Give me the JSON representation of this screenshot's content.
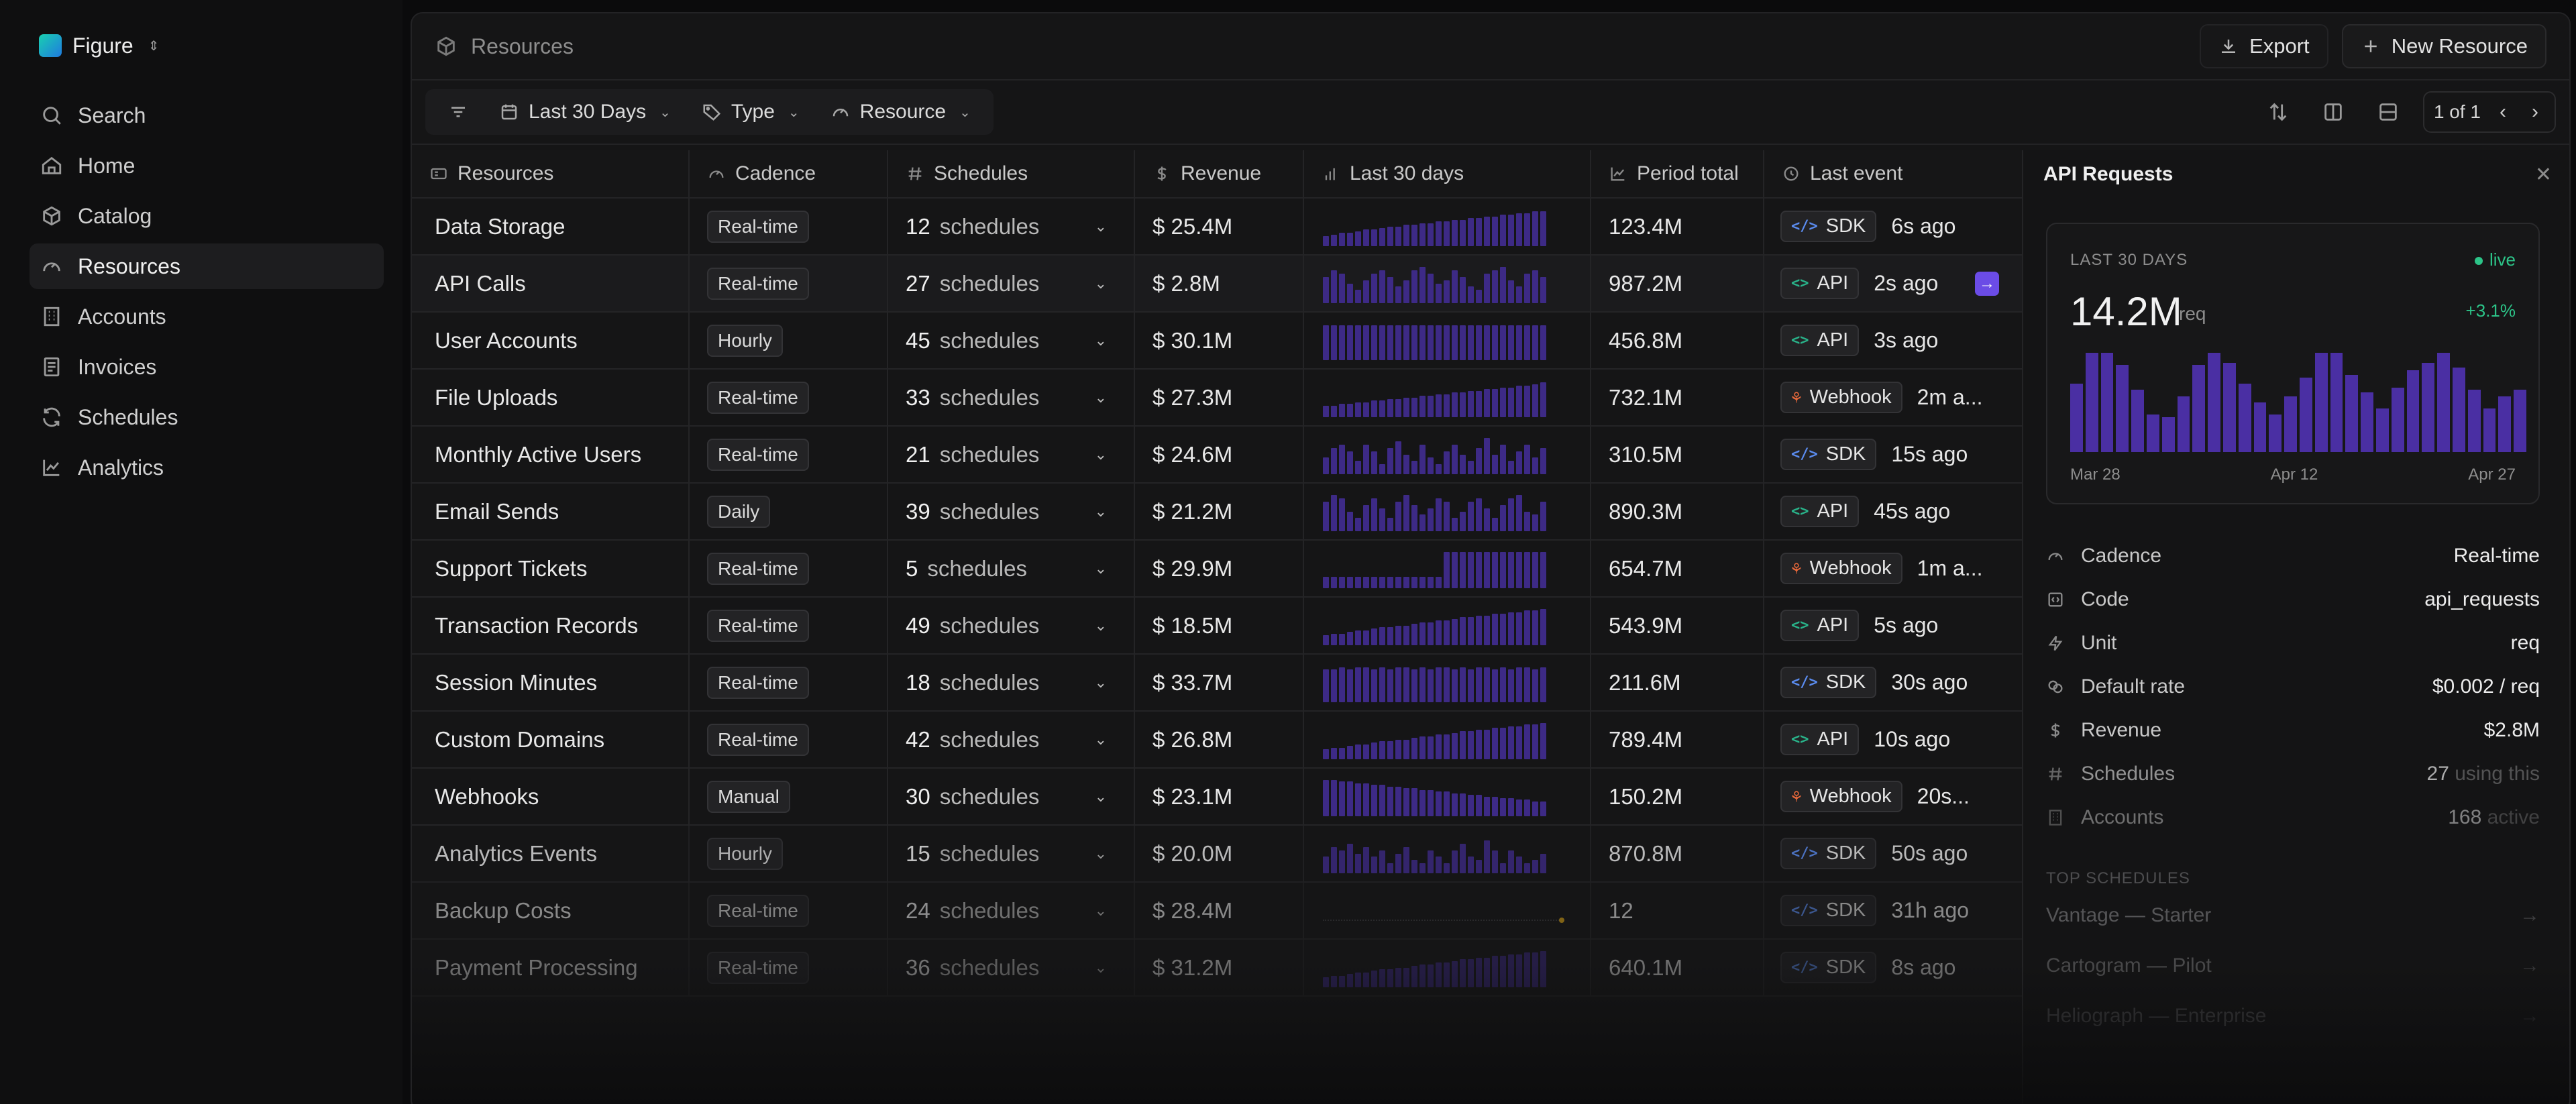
{
  "app": {
    "name": "Figure"
  },
  "sidebar": {
    "items": [
      {
        "label": "Search",
        "icon": "search-icon"
      },
      {
        "label": "Home",
        "icon": "home-icon"
      },
      {
        "label": "Catalog",
        "icon": "box-icon"
      },
      {
        "label": "Resources",
        "icon": "gauge-icon",
        "active": true
      },
      {
        "label": "Accounts",
        "icon": "building-icon"
      },
      {
        "label": "Invoices",
        "icon": "invoice-icon"
      },
      {
        "label": "Schedules",
        "icon": "refresh-icon"
      },
      {
        "label": "Analytics",
        "icon": "chart-icon"
      }
    ]
  },
  "header": {
    "breadcrumb": "Resources",
    "export_label": "Export",
    "new_label": "New Resource"
  },
  "filters": {
    "range_label": "Last 30 Days",
    "type_label": "Type",
    "resource_label": "Resource"
  },
  "pager": {
    "label": "1 of 1"
  },
  "table": {
    "columns": [
      "Resources",
      "Cadence",
      "Schedules",
      "Revenue",
      "Last 30 days",
      "Period total",
      "Last event"
    ],
    "schedules_word": "schedules",
    "rows": [
      {
        "name": "Data Storage",
        "cadence": "Real-time",
        "schedules": "12",
        "revenue": "$ 25.4M",
        "spark": [
          6,
          7,
          8,
          8,
          9,
          10,
          10,
          11,
          12,
          12,
          13,
          13,
          14,
          14,
          15,
          15,
          16,
          16,
          17,
          17,
          18,
          18,
          19,
          19,
          20,
          20,
          21,
          21
        ],
        "total": "123.4M",
        "source": "SDK",
        "event": "6s ago"
      },
      {
        "name": "API Calls",
        "cadence": "Real-time",
        "schedules": "27",
        "revenue": "$ 2.8M",
        "spark": [
          16,
          20,
          18,
          12,
          8,
          14,
          18,
          20,
          16,
          10,
          14,
          20,
          22,
          18,
          12,
          14,
          20,
          16,
          10,
          8,
          18,
          20,
          22,
          14,
          10,
          18,
          20,
          16
        ],
        "total": "987.2M",
        "source": "API",
        "event": "2s ago",
        "jump": true
      },
      {
        "name": "User Accounts",
        "cadence": "Hourly",
        "schedules": "45",
        "revenue": "$ 30.1M",
        "spark": [
          21,
          21,
          21,
          21,
          21,
          21,
          21,
          21,
          21,
          21,
          21,
          21,
          21,
          21,
          21,
          21,
          21,
          21,
          21,
          21,
          21,
          21,
          21,
          21,
          21,
          21,
          21,
          21
        ],
        "total": "456.8M",
        "source": "API",
        "event": "3s ago"
      },
      {
        "name": "File Uploads",
        "cadence": "Real-time",
        "schedules": "33",
        "revenue": "$ 27.3M",
        "spark": [
          7,
          7,
          8,
          8,
          9,
          9,
          10,
          10,
          11,
          11,
          12,
          12,
          13,
          13,
          14,
          14,
          15,
          15,
          16,
          16,
          17,
          17,
          18,
          18,
          19,
          19,
          20,
          21
        ],
        "total": "732.1M",
        "source": "Webhook",
        "event": "2m a..."
      },
      {
        "name": "Monthly Active Users",
        "cadence": "Real-time",
        "schedules": "21",
        "revenue": "$ 24.6M",
        "spark": [
          10,
          16,
          18,
          14,
          8,
          18,
          14,
          6,
          16,
          20,
          12,
          8,
          18,
          10,
          6,
          14,
          18,
          12,
          8,
          16,
          22,
          12,
          18,
          8,
          14,
          18,
          10,
          16
        ],
        "total": "310.5M",
        "source": "SDK",
        "event": "15s ago"
      },
      {
        "name": "Email Sends",
        "cadence": "Daily",
        "schedules": "39",
        "revenue": "$ 21.2M",
        "spark": [
          18,
          22,
          20,
          12,
          8,
          16,
          20,
          14,
          8,
          18,
          22,
          16,
          10,
          14,
          20,
          18,
          8,
          12,
          18,
          20,
          14,
          8,
          16,
          20,
          22,
          12,
          10,
          18
        ],
        "total": "890.3M",
        "source": "API",
        "event": "45s ago"
      },
      {
        "name": "Support Tickets",
        "cadence": "Real-time",
        "schedules": "5",
        "revenue": "$ 29.9M",
        "spark": [
          7,
          7,
          7,
          7,
          7,
          7,
          7,
          7,
          7,
          7,
          7,
          7,
          7,
          7,
          7,
          22,
          22,
          22,
          22,
          22,
          22,
          22,
          22,
          22,
          22,
          22,
          22,
          22
        ],
        "total": "654.7M",
        "source": "Webhook",
        "event": "1m a..."
      },
      {
        "name": "Transaction Records",
        "cadence": "Real-time",
        "schedules": "49",
        "revenue": "$ 18.5M",
        "spark": [
          6,
          7,
          7,
          8,
          9,
          9,
          10,
          11,
          11,
          12,
          12,
          13,
          14,
          14,
          15,
          15,
          16,
          17,
          17,
          18,
          18,
          19,
          19,
          20,
          20,
          21,
          21,
          22
        ],
        "total": "543.9M",
        "source": "API",
        "event": "5s ago"
      },
      {
        "name": "Session Minutes",
        "cadence": "Real-time",
        "schedules": "18",
        "revenue": "$ 33.7M",
        "spark": [
          20,
          20,
          21,
          20,
          21,
          21,
          20,
          21,
          20,
          21,
          21,
          20,
          21,
          20,
          21,
          21,
          20,
          21,
          20,
          21,
          21,
          20,
          21,
          20,
          21,
          21,
          20,
          21
        ],
        "total": "211.6M",
        "source": "SDK",
        "event": "30s ago"
      },
      {
        "name": "Custom Domains",
        "cadence": "Real-time",
        "schedules": "42",
        "revenue": "$ 26.8M",
        "spark": [
          6,
          7,
          7,
          8,
          9,
          9,
          10,
          11,
          11,
          12,
          12,
          13,
          14,
          14,
          15,
          15,
          16,
          17,
          17,
          18,
          18,
          19,
          19,
          20,
          20,
          21,
          21,
          22
        ],
        "total": "789.4M",
        "source": "API",
        "event": "10s ago"
      },
      {
        "name": "Webhooks",
        "cadence": "Manual",
        "schedules": "30",
        "revenue": "$ 23.1M",
        "spark": [
          22,
          22,
          21,
          21,
          20,
          20,
          19,
          19,
          18,
          18,
          17,
          17,
          16,
          16,
          15,
          15,
          14,
          14,
          13,
          13,
          12,
          12,
          11,
          11,
          10,
          10,
          9,
          9
        ],
        "total": "150.2M",
        "source": "Webhook",
        "event": "20s..."
      },
      {
        "name": "Analytics Events",
        "cadence": "Hourly",
        "schedules": "15",
        "revenue": "$ 20.0M",
        "spark": [
          10,
          16,
          14,
          18,
          12,
          16,
          10,
          14,
          6,
          12,
          16,
          8,
          6,
          14,
          10,
          6,
          14,
          18,
          10,
          8,
          20,
          14,
          6,
          14,
          10,
          6,
          8,
          12
        ],
        "total": "870.8M",
        "source": "SDK",
        "event": "50s ago"
      },
      {
        "name": "Backup Costs",
        "cadence": "Real-time",
        "schedules": "24",
        "revenue": "$ 28.4M",
        "spark": [],
        "total": "12",
        "source": "SDK",
        "event": "31h ago"
      },
      {
        "name": "Payment Processing",
        "cadence": "Real-time",
        "schedules": "36",
        "revenue": "$ 31.2M",
        "spark": [
          6,
          7,
          7,
          8,
          9,
          9,
          10,
          11,
          11,
          12,
          12,
          13,
          14,
          14,
          15,
          15,
          16,
          17,
          17,
          18,
          18,
          19,
          19,
          20,
          20,
          21,
          21,
          22
        ],
        "total": "640.1M",
        "source": "SDK",
        "event": "8s ago"
      }
    ]
  },
  "detail": {
    "title": "API Requests",
    "card": {
      "label": "LAST 30 DAYS",
      "live": "live",
      "value": "14.2M",
      "unit": "req",
      "delta": "+3.1%",
      "bars": [
        55,
        80,
        80,
        70,
        50,
        30,
        28,
        45,
        70,
        80,
        72,
        55,
        40,
        30,
        45,
        60,
        80,
        80,
        62,
        48,
        35,
        52,
        66,
        72,
        80,
        68,
        50,
        35,
        45,
        50
      ],
      "x_labels": [
        "Mar 28",
        "Apr 12",
        "Apr 27"
      ]
    },
    "props": [
      {
        "key": "Cadence",
        "value": "Real-time",
        "icon": "gauge-icon"
      },
      {
        "key": "Code",
        "value": "api_requests",
        "icon": "code-icon"
      },
      {
        "key": "Unit",
        "value": "req",
        "icon": "bolt-icon"
      },
      {
        "key": "Default rate",
        "value": "$0.002 / req",
        "icon": "coins-icon"
      },
      {
        "key": "Revenue",
        "value": "$2.8M",
        "icon": "dollar-icon"
      },
      {
        "key": "Schedules",
        "value": "27",
        "suffix": "using this",
        "icon": "hash-icon"
      },
      {
        "key": "Accounts",
        "value": "168",
        "suffix": "active",
        "icon": "building-icon"
      }
    ],
    "top_schedules_title": "TOP SCHEDULES",
    "top_schedules": [
      "Vantage — Starter",
      "Cartogram — Pilot",
      "Heliograph — Enterprise"
    ]
  }
}
